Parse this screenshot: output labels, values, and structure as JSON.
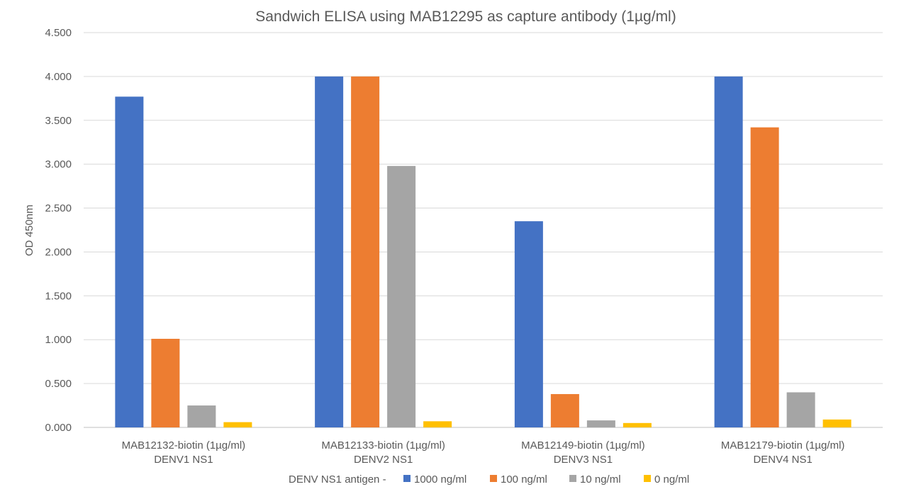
{
  "chart_data": {
    "type": "bar",
    "title": "Sandwich ELISA using MAB12295 as capture antibody (1µg/ml)",
    "ylabel": "OD 450nm",
    "xlabel": "",
    "ylim": [
      0,
      4.5
    ],
    "yticks": [
      "0.000",
      "0.500",
      "1.000",
      "1.500",
      "2.000",
      "2.500",
      "3.000",
      "3.500",
      "4.000",
      "4.500"
    ],
    "ytick_values": [
      0,
      0.5,
      1.0,
      1.5,
      2.0,
      2.5,
      3.0,
      3.5,
      4.0,
      4.5
    ],
    "grid": true,
    "legend_position": "bottom",
    "legend_prefix": "DENV NS1 antigen -",
    "categories": [
      [
        "MAB12132-biotin (1µg/ml)",
        "DENV1 NS1"
      ],
      [
        "MAB12133-biotin (1µg/ml)",
        "DENV2 NS1"
      ],
      [
        "MAB12149-biotin (1µg/ml)",
        "DENV3 NS1"
      ],
      [
        "MAB12179-biotin (1µg/ml)",
        "DENV4 NS1"
      ]
    ],
    "series": [
      {
        "name": "1000 ng/ml",
        "color": "#4472C4",
        "values": [
          3.77,
          4.0,
          2.35,
          4.0
        ]
      },
      {
        "name": "100 ng/ml",
        "color": "#ED7D31",
        "values": [
          1.01,
          4.0,
          0.38,
          3.42
        ]
      },
      {
        "name": "10 ng/ml",
        "color": "#A5A5A5",
        "values": [
          0.25,
          2.98,
          0.08,
          0.4
        ]
      },
      {
        "name": "0 ng/ml",
        "color": "#FFC000",
        "values": [
          0.06,
          0.07,
          0.05,
          0.09
        ]
      }
    ]
  }
}
